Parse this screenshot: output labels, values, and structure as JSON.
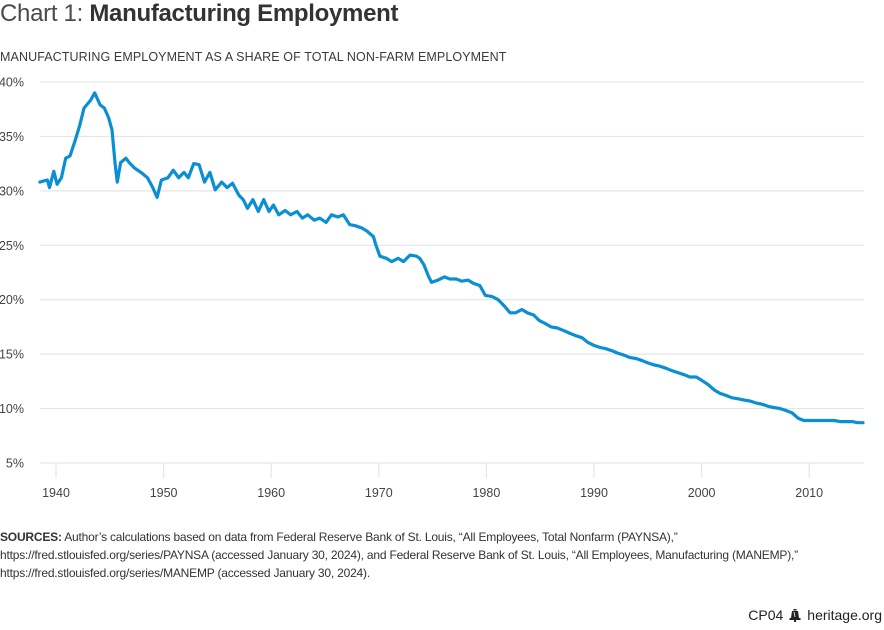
{
  "header": {
    "title_prefix": "Chart 1:",
    "title_main": "Manufacturing Employment",
    "subtitle": "MANUFACTURING EMPLOYMENT AS A SHARE OF TOTAL NON-FARM EMPLOYMENT"
  },
  "footer": {
    "sources_label": "SOURCES:",
    "sources_text": " Author’s calculations based on data from Federal Reserve Bank of St. Louis, “All Employees, Total Nonfarm (PAYNSA),” https://fred.stlouisfed.org/series/PAYNSA (accessed January 30, 2024), and Federal Reserve Bank of St. Louis, “All Employees, Manufacturing (MANEMP),” https://fred.stlouisfed.org/series/MANEMP (accessed January 30, 2024).",
    "chart_code": "CP04",
    "logo_icon": "liberty-bell-icon",
    "site": "heritage.org"
  },
  "colors": {
    "line": "#0a8fd4",
    "grid": "#e6e6e6",
    "text": "#333333"
  },
  "chart_data": {
    "type": "line",
    "title": "Chart 1: Manufacturing Employment",
    "subtitle": "MANUFACTURING EMPLOYMENT AS A SHARE OF TOTAL NON-FARM EMPLOYMENT",
    "xlabel": "",
    "ylabel": "",
    "xlim": [
      1938.5,
      2015.1
    ],
    "ylim": [
      5,
      40
    ],
    "x_ticks": [
      1940,
      1950,
      1960,
      1970,
      1980,
      1990,
      2000,
      2010
    ],
    "x_tick_labels": [
      "1940",
      "1950",
      "1960",
      "1970",
      "1980",
      "1990",
      "2000",
      "2010"
    ],
    "y_ticks": [
      5,
      10,
      15,
      20,
      25,
      30,
      35,
      40
    ],
    "y_tick_labels": [
      "5%",
      "10%",
      "15%",
      "20%",
      "25%",
      "30%",
      "35%",
      "40%"
    ],
    "grid": true,
    "legend": "none",
    "series": [
      {
        "name": "Manufacturing share of non-farm employment (%)",
        "x": [
          1938.5,
          1939.2,
          1939.4,
          1939.8,
          1940.1,
          1940.5,
          1940.9,
          1941.3,
          1941.8,
          1942.2,
          1942.6,
          1943.2,
          1943.6,
          1944.1,
          1944.5,
          1944.9,
          1945.2,
          1945.5,
          1945.7,
          1946.0,
          1946.5,
          1946.8,
          1947.3,
          1947.9,
          1948.5,
          1949.0,
          1949.4,
          1949.8,
          1950.4,
          1950.9,
          1951.4,
          1951.9,
          1952.3,
          1952.8,
          1953.3,
          1953.8,
          1954.3,
          1954.8,
          1955.4,
          1955.9,
          1956.4,
          1957.0,
          1957.4,
          1957.8,
          1958.3,
          1958.8,
          1959.3,
          1959.8,
          1960.2,
          1960.7,
          1961.3,
          1961.8,
          1962.4,
          1962.9,
          1963.4,
          1964.0,
          1964.5,
          1965.1,
          1965.6,
          1966.2,
          1966.7,
          1967.3,
          1967.8,
          1968.4,
          1968.9,
          1969.5,
          1969.7,
          1970.1,
          1970.7,
          1971.2,
          1971.8,
          1972.3,
          1972.9,
          1973.5,
          1973.8,
          1974.2,
          1974.6,
          1974.9,
          1975.5,
          1976.1,
          1976.6,
          1977.2,
          1977.7,
          1978.3,
          1978.8,
          1979.4,
          1979.9,
          1980.5,
          1981.1,
          1981.6,
          1982.2,
          1982.7,
          1983.3,
          1983.8,
          1984.4,
          1984.9,
          1985.5,
          1986.0,
          1986.6,
          1987.1,
          1987.8,
          1988.3,
          1988.9,
          1989.4,
          1990.0,
          1990.6,
          1991.1,
          1991.7,
          1992.2,
          1992.8,
          1993.3,
          1993.9,
          1994.5,
          1995.0,
          1995.6,
          1996.1,
          1996.7,
          1997.2,
          1997.8,
          1998.4,
          1998.9,
          1999.5,
          2000.0,
          2000.6,
          2001.2,
          2001.7,
          2002.3,
          2002.8,
          2003.4,
          2003.9,
          2004.5,
          2005.1,
          2005.6,
          2006.2,
          2006.7,
          2007.3,
          2007.9,
          2008.4,
          2009.0,
          2009.5,
          2010.1,
          2010.6,
          2011.2,
          2011.7,
          2012.3,
          2012.9,
          2013.4,
          2014.0,
          2014.5,
          2015.0
        ],
        "values": [
          30.8,
          31.0,
          30.3,
          31.8,
          30.6,
          31.2,
          33.0,
          33.2,
          34.7,
          36.0,
          37.6,
          38.3,
          39.0,
          37.9,
          37.6,
          36.7,
          35.6,
          32.4,
          30.8,
          32.6,
          33.0,
          32.6,
          32.1,
          31.7,
          31.2,
          30.3,
          29.4,
          31.0,
          31.2,
          31.9,
          31.2,
          31.7,
          31.2,
          32.5,
          32.4,
          30.8,
          31.7,
          30.1,
          30.8,
          30.3,
          30.7,
          29.6,
          29.2,
          28.4,
          29.2,
          28.1,
          29.2,
          28.1,
          28.7,
          27.8,
          28.2,
          27.8,
          28.1,
          27.5,
          27.8,
          27.3,
          27.5,
          27.1,
          27.8,
          27.6,
          27.8,
          26.9,
          26.8,
          26.6,
          26.3,
          25.8,
          25.1,
          24.0,
          23.8,
          23.5,
          23.8,
          23.5,
          24.1,
          24.0,
          23.8,
          23.2,
          22.2,
          21.6,
          21.8,
          22.1,
          21.9,
          21.9,
          21.7,
          21.8,
          21.5,
          21.3,
          20.4,
          20.3,
          20.0,
          19.5,
          18.8,
          18.8,
          19.1,
          18.8,
          18.6,
          18.1,
          17.8,
          17.5,
          17.4,
          17.2,
          16.9,
          16.7,
          16.5,
          16.1,
          15.8,
          15.6,
          15.5,
          15.3,
          15.1,
          14.9,
          14.7,
          14.6,
          14.4,
          14.2,
          14.0,
          13.9,
          13.7,
          13.5,
          13.3,
          13.1,
          12.9,
          12.9,
          12.6,
          12.2,
          11.7,
          11.4,
          11.2,
          11.0,
          10.9,
          10.8,
          10.7,
          10.5,
          10.4,
          10.2,
          10.1,
          10.0,
          9.8,
          9.6,
          9.1,
          8.9,
          8.9,
          8.9,
          8.9,
          8.9,
          8.9,
          8.8,
          8.8,
          8.8,
          8.7,
          8.7
        ]
      }
    ]
  }
}
